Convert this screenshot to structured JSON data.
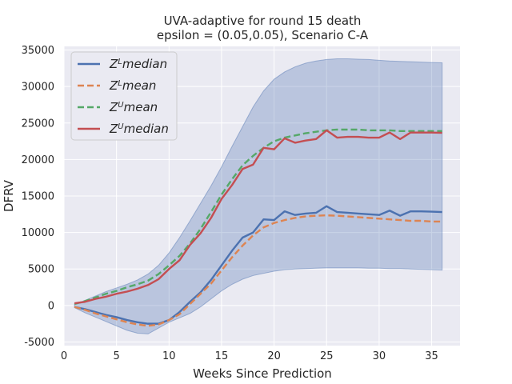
{
  "chart_data": {
    "type": "line",
    "title": "UVA-adaptive for round 15 death",
    "subtitle": "epsilon = (0.05,0.05), Scenario C-A",
    "xlabel": "Weeks Since Prediction",
    "ylabel": "DFRV",
    "xlim": [
      0,
      37.7
    ],
    "ylim": [
      -5500,
      35500
    ],
    "x_ticks": [
      0,
      5,
      10,
      15,
      20,
      25,
      30,
      35
    ],
    "y_ticks": [
      -5000,
      0,
      5000,
      10000,
      15000,
      20000,
      25000,
      30000,
      35000
    ],
    "grid": true,
    "legend_position": "top-left",
    "x": [
      1,
      2,
      3,
      4,
      5,
      6,
      7,
      8,
      9,
      10,
      11,
      12,
      13,
      14,
      15,
      16,
      17,
      18,
      19,
      20,
      21,
      22,
      23,
      24,
      25,
      26,
      27,
      28,
      29,
      30,
      31,
      32,
      33,
      34,
      35,
      36
    ],
    "band": {
      "color": "#4c72b0",
      "upper": [
        200,
        700,
        1300,
        1900,
        2400,
        2900,
        3500,
        4300,
        5500,
        7200,
        9300,
        11600,
        14000,
        16400,
        19000,
        21800,
        24500,
        27200,
        29400,
        31000,
        32000,
        32700,
        33200,
        33500,
        33700,
        33800,
        33800,
        33750,
        33700,
        33600,
        33500,
        33450,
        33400,
        33350,
        33300,
        33250
      ],
      "lower": [
        -300,
        -1000,
        -1600,
        -2200,
        -2800,
        -3400,
        -3800,
        -3900,
        -3100,
        -2300,
        -1700,
        -1100,
        -200,
        900,
        2000,
        2900,
        3600,
        4100,
        4400,
        4700,
        4900,
        5000,
        5050,
        5100,
        5150,
        5150,
        5150,
        5150,
        5100,
        5100,
        5050,
        5050,
        5000,
        4950,
        4900,
        4850
      ]
    },
    "series": [
      {
        "name": "Z^L median",
        "label_base": "Z",
        "label_sup": "L",
        "label_rest": "median",
        "color": "#4c72b0",
        "dash": "solid",
        "values": [
          -200,
          -500,
          -900,
          -1300,
          -1600,
          -2000,
          -2300,
          -2500,
          -2500,
          -2000,
          -900,
          500,
          1800,
          3500,
          5500,
          7500,
          9300,
          10000,
          11800,
          11700,
          12900,
          12400,
          12600,
          12700,
          13600,
          12800,
          12700,
          12600,
          12500,
          12400,
          13000,
          12300,
          12900,
          12900,
          12850,
          12800
        ]
      },
      {
        "name": "Z^L mean",
        "label_base": "Z",
        "label_sup": "L",
        "label_rest": "mean",
        "color": "#dd8452",
        "dash": "8,4",
        "values": [
          -200,
          -600,
          -1100,
          -1500,
          -1900,
          -2300,
          -2600,
          -2800,
          -2600,
          -2000,
          -1200,
          200,
          1600,
          3000,
          4800,
          6600,
          8200,
          9600,
          10700,
          11300,
          11700,
          12000,
          12200,
          12300,
          12350,
          12300,
          12200,
          12100,
          12000,
          11900,
          11800,
          11700,
          11600,
          11600,
          11500,
          11500
        ]
      },
      {
        "name": "Z^U mean",
        "label_base": "Z",
        "label_sup": "U",
        "label_rest": "mean",
        "color": "#55a868",
        "dash": "8,4",
        "values": [
          200,
          600,
          1100,
          1600,
          2000,
          2500,
          2900,
          3400,
          4300,
          5500,
          6800,
          8500,
          10500,
          12800,
          15200,
          17300,
          19200,
          20500,
          21600,
          22500,
          23000,
          23300,
          23600,
          23800,
          24000,
          24100,
          24100,
          24100,
          24000,
          24000,
          24000,
          23900,
          23900,
          23900,
          23900,
          23900
        ]
      },
      {
        "name": "Z^U median",
        "label_base": "Z",
        "label_sup": "U",
        "label_rest": "median",
        "color": "#c44e52",
        "dash": "solid",
        "values": [
          300,
          500,
          900,
          1200,
          1600,
          1900,
          2300,
          2800,
          3600,
          5000,
          6200,
          8300,
          9900,
          12000,
          14600,
          16500,
          18700,
          19300,
          21600,
          21400,
          22900,
          22300,
          22600,
          22800,
          24000,
          23000,
          23100,
          23100,
          23000,
          23000,
          23700,
          22800,
          23700,
          23700,
          23700,
          23650
        ]
      }
    ]
  }
}
